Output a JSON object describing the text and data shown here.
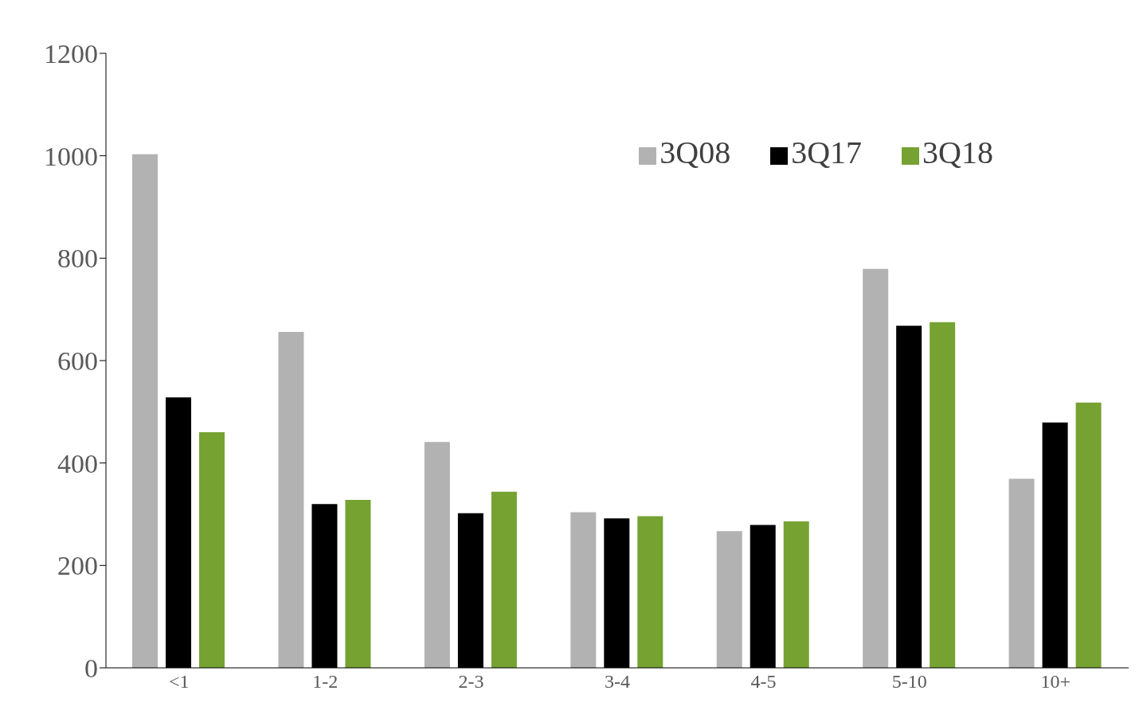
{
  "chart_data": {
    "type": "bar",
    "categories": [
      "<1",
      "1-2",
      "2-3",
      "3-4",
      "4-5",
      "5-10",
      "10+"
    ],
    "series": [
      {
        "name": "3Q08",
        "color": "#b2b2b2",
        "values": [
          1003,
          656,
          441,
          304,
          267,
          779,
          369
        ]
      },
      {
        "name": "3Q17",
        "color": "#000000",
        "values": [
          528,
          320,
          302,
          292,
          279,
          668,
          479
        ]
      },
      {
        "name": "3Q18",
        "color": "#76a232",
        "values": [
          460,
          328,
          344,
          296,
          286,
          675,
          518
        ]
      }
    ],
    "ylim": [
      0,
      1200
    ],
    "yticks": [
      0,
      200,
      400,
      600,
      800,
      1000,
      1200
    ],
    "grid": false,
    "legend": "top right"
  }
}
